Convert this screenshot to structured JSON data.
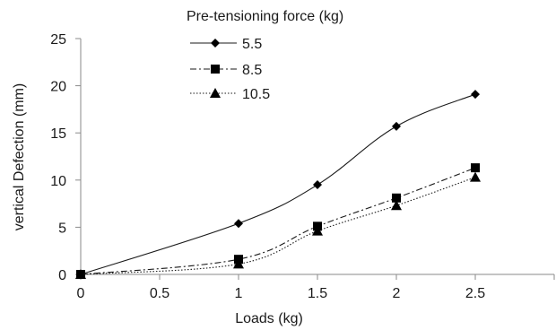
{
  "chart_data": {
    "type": "line",
    "xlabel": "Loads (kg)",
    "ylabel": "vertical Defection (mm)",
    "xlim": [
      0,
      3
    ],
    "ylim": [
      0,
      25
    ],
    "xticks": [
      "0",
      "0.5",
      "1",
      "1.5",
      "2",
      "2.5",
      ""
    ],
    "yticks": [
      "0",
      "5",
      "10",
      "15",
      "20",
      "25"
    ],
    "xtick_values": [
      0,
      0.5,
      1,
      1.5,
      2,
      2.5,
      3
    ],
    "ytick_values": [
      0,
      5,
      10,
      15,
      20,
      25
    ],
    "legend_title": "Pre-tensioning force (kg)",
    "legend_position": "top-left",
    "grid": false,
    "series": [
      {
        "name": "5.5",
        "marker": "diamond",
        "line": "solid",
        "x": [
          0,
          1,
          1.5,
          2,
          2.5
        ],
        "y": [
          0,
          5.4,
          9.5,
          15.7,
          19.1
        ]
      },
      {
        "name": "8.5",
        "marker": "square",
        "line": "dashdot",
        "x": [
          0,
          1,
          1.5,
          2,
          2.5
        ],
        "y": [
          0,
          1.6,
          5.1,
          8.1,
          11.3
        ]
      },
      {
        "name": "10.5",
        "marker": "triangle",
        "line": "dotted",
        "x": [
          0,
          1,
          1.5,
          2,
          2.5
        ],
        "y": [
          0,
          1.1,
          4.6,
          7.3,
          10.3
        ]
      }
    ]
  }
}
